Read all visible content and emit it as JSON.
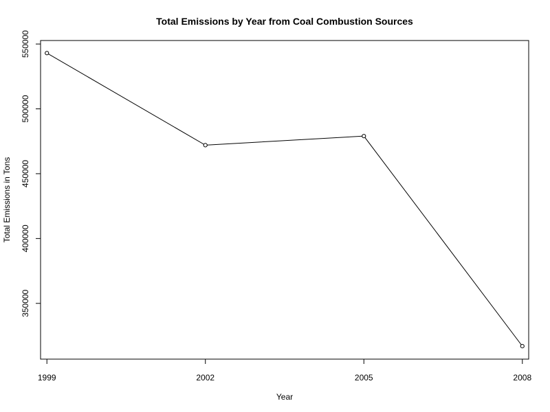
{
  "chart_data": {
    "type": "line",
    "title": "Total Emissions by Year from Coal Combustion Sources",
    "xlabel": "Year",
    "ylabel": "Total Emissions in Tons",
    "x": [
      1999,
      2002,
      2005,
      2008
    ],
    "x_ticks": [
      "1999",
      "2002",
      "2005",
      "2008"
    ],
    "y_ticks": [
      "350000",
      "400000",
      "450000",
      "500000",
      "550000"
    ],
    "y_tick_values": [
      350000,
      400000,
      450000,
      500000,
      550000
    ],
    "series": [
      {
        "values": [
          543000,
          472000,
          479000,
          317000
        ]
      }
    ],
    "xlim": [
      1998.88,
      2008.12
    ],
    "ylim": [
      307000,
      552700
    ],
    "grid": false,
    "legend": "none",
    "markers": "open-circle",
    "line_color": "#000000"
  }
}
